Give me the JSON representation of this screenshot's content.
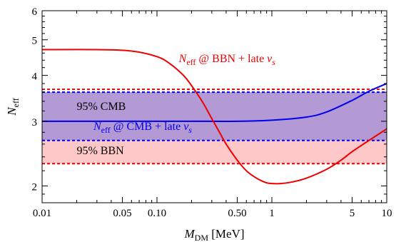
{
  "chart_data": {
    "type": "line",
    "title": "",
    "xlabel": {
      "main": "M",
      "sub": "DM",
      "unit": "[MeV]"
    },
    "ylabel": {
      "main": "N",
      "sub": "eff"
    },
    "xscale": "log",
    "yscale": "log",
    "xlim": [
      0.01,
      10
    ],
    "ylim": [
      1.8,
      6
    ],
    "grid": false,
    "x_ticks": [
      {
        "value": 0.01,
        "label": "0.01"
      },
      {
        "value": 0.05,
        "label": "0.05"
      },
      {
        "value": 0.1,
        "label": "0.10"
      },
      {
        "value": 0.5,
        "label": "0.50"
      },
      {
        "value": 1,
        "label": "1"
      },
      {
        "value": 5,
        "label": "5"
      },
      {
        "value": 10,
        "label": "10"
      }
    ],
    "x_minor_ticks": [
      0.02,
      0.03,
      0.04,
      0.06,
      0.07,
      0.08,
      0.09,
      0.2,
      0.3,
      0.4,
      0.6,
      0.7,
      0.8,
      0.9,
      2,
      3,
      4,
      6,
      7,
      8,
      9
    ],
    "y_ticks": [
      {
        "value": 2,
        "label": "2"
      },
      {
        "value": 3,
        "label": "3"
      },
      {
        "value": 4,
        "label": "4"
      },
      {
        "value": 5,
        "label": "5"
      },
      {
        "value": 6,
        "label": "6"
      }
    ],
    "y_minor_ticks": [
      1.9,
      2.2,
      2.4,
      2.6,
      2.8,
      3.2,
      3.4,
      3.6,
      3.8,
      4.2,
      4.4,
      4.6,
      4.8,
      5.2,
      5.4,
      5.6,
      5.8
    ],
    "bands": [
      {
        "label": "95% CMB",
        "ymin": 2.66,
        "ymax": 3.6,
        "fill": "#b39ad4",
        "edge": "#0000ee",
        "label_x": 0.02,
        "label_y": 3.22
      },
      {
        "label": "95% BBN",
        "ymin": 2.3,
        "ymax": 2.66,
        "fill": "#ffc8c8",
        "edge": "#ee0000",
        "label_x": 0.02,
        "label_y": 2.44
      }
    ],
    "series": [
      {
        "name": {
          "main": "N",
          "sub": "eff",
          "rest": " @ CMB + late ",
          "nu": "ν",
          "nu_sub": "s"
        },
        "color": "#0000ee",
        "label_x": 0.028,
        "label_y": 2.84,
        "x": [
          0.01,
          0.05,
          0.2,
          0.5,
          1.0,
          2.0,
          3.0,
          5.0,
          7.0,
          10.0
        ],
        "y": [
          3.0,
          3.0,
          3.0,
          3.0,
          3.02,
          3.08,
          3.18,
          3.42,
          3.62,
          3.8
        ]
      },
      {
        "name": {
          "main": "N",
          "sub": "eff",
          "rest": " @ BBN + late ",
          "nu": "ν",
          "nu_sub": "s"
        },
        "color": "#ee0000",
        "label_x": 0.155,
        "label_y": 4.35,
        "x": [
          0.01,
          0.03,
          0.06,
          0.1,
          0.13,
          0.17,
          0.2,
          0.25,
          0.3,
          0.35,
          0.4,
          0.5,
          0.6,
          0.7,
          0.8,
          0.9,
          1.0,
          1.2,
          1.5,
          2.0,
          3.0,
          4.0,
          5.0,
          7.0,
          10.0
        ],
        "y": [
          4.7,
          4.7,
          4.66,
          4.5,
          4.3,
          4.0,
          3.75,
          3.38,
          3.05,
          2.8,
          2.6,
          2.35,
          2.2,
          2.12,
          2.07,
          2.04,
          2.03,
          2.03,
          2.05,
          2.1,
          2.22,
          2.35,
          2.48,
          2.66,
          2.86
        ]
      }
    ]
  }
}
